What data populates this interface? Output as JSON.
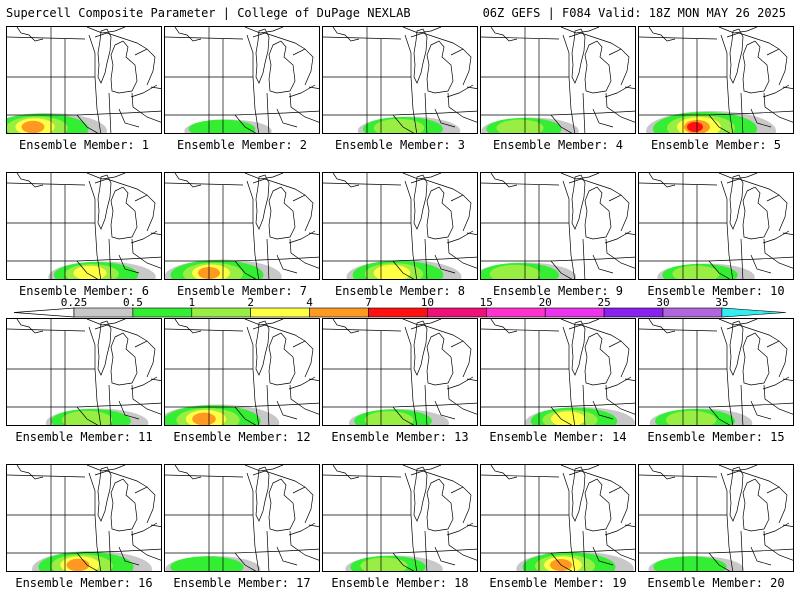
{
  "header": {
    "title": "Supercell Composite Parameter | College of DuPage NEXLAB",
    "run_info": "06Z GEFS | F084 Valid: 18Z MON MAY 26 2025"
  },
  "members": [
    {
      "label": "Ensemble Member: 1",
      "intensity": 0.8
    },
    {
      "label": "Ensemble Member: 2",
      "intensity": 0.15
    },
    {
      "label": "Ensemble Member: 3",
      "intensity": 0.45
    },
    {
      "label": "Ensemble Member: 4",
      "intensity": 0.35
    },
    {
      "label": "Ensemble Member: 5",
      "intensity": 1.0
    },
    {
      "label": "Ensemble Member: 6",
      "intensity": 0.55
    },
    {
      "label": "Ensemble Member: 7",
      "intensity": 0.75
    },
    {
      "label": "Ensemble Member: 8",
      "intensity": 0.7
    },
    {
      "label": "Ensemble Member: 9",
      "intensity": 0.45
    },
    {
      "label": "Ensemble Member: 10",
      "intensity": 0.35
    },
    {
      "label": "Ensemble Member: 11",
      "intensity": 0.45
    },
    {
      "label": "Ensemble Member: 12",
      "intensity": 0.85
    },
    {
      "label": "Ensemble Member: 13",
      "intensity": 0.4
    },
    {
      "label": "Ensemble Member: 14",
      "intensity": 0.6
    },
    {
      "label": "Ensemble Member: 15",
      "intensity": 0.45
    },
    {
      "label": "Ensemble Member: 16",
      "intensity": 0.8
    },
    {
      "label": "Ensemble Member: 17",
      "intensity": 0.3
    },
    {
      "label": "Ensemble Member: 18",
      "intensity": 0.35
    },
    {
      "label": "Ensemble Member: 19",
      "intensity": 0.75
    },
    {
      "label": "Ensemble Member: 20",
      "intensity": 0.3
    }
  ],
  "colorbar": {
    "ticks": [
      "0.25",
      "0.5",
      "1",
      "2",
      "4",
      "7",
      "10",
      "15",
      "20",
      "25",
      "30",
      "35"
    ],
    "colors": [
      "#c8c8c8",
      "#33ee33",
      "#99ee44",
      "#ffff44",
      "#ff9922",
      "#ff1111",
      "#ee1177",
      "#ff33cc",
      "#ee33ee",
      "#8822ee",
      "#b266dd",
      "#33eeee"
    ]
  }
}
